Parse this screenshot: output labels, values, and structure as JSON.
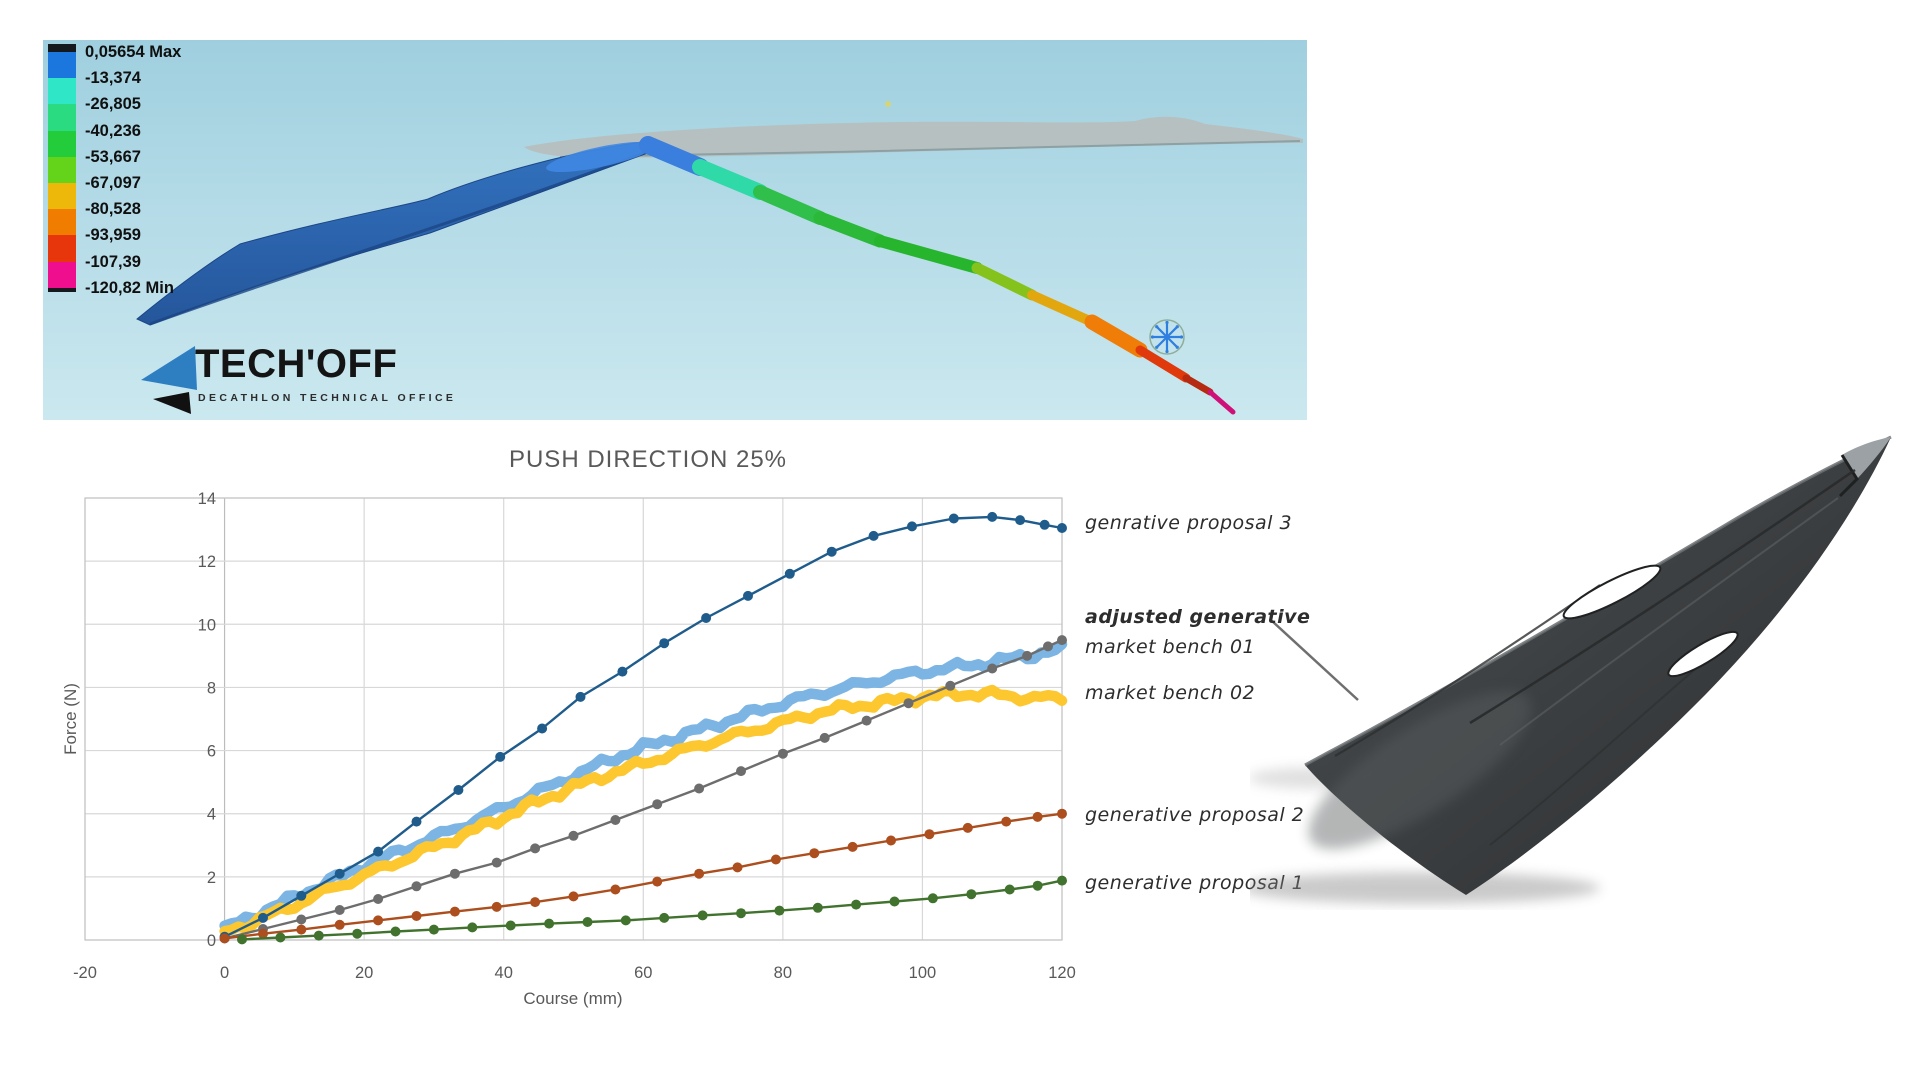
{
  "fea": {
    "legend": {
      "labels": [
        "0,05654 Max",
        "-13,374",
        "-26,805",
        "-40,236",
        "-53,667",
        "-67,097",
        "-80,528",
        "-93,959",
        "-107,39",
        "-120,82 Min"
      ],
      "band_colors": [
        "#1b76dd",
        "#2fe6c6",
        "#2bdb82",
        "#22cc3a",
        "#63d41a",
        "#eeb80a",
        "#f07d00",
        "#e8360c",
        "#ef0e8e"
      ]
    },
    "logo": {
      "title": "TECH'OFF",
      "subtitle": "DECATHLON TECHNICAL OFFICE"
    },
    "colors": {
      "bg_top": "#9fcfdf",
      "bg_bottom": "#cbe8ef",
      "blade_top": "#3272bf",
      "blade_bottom": "#25569b",
      "blade_edge": "#1c4686",
      "blade_highlight": "#3f87e2",
      "silhouette": "#b6c0c1",
      "silhouette_edge": "#8da0a3",
      "tail": [
        "#3a7ede",
        "#2fd9a8",
        "#2fbf4a",
        "#2cb838",
        "#28b52e",
        "#86c21c",
        "#e2a60e",
        "#ef7d08",
        "#e03a0c",
        "#b52a10",
        "#cf1078"
      ],
      "snowflake": "#2f7fe0",
      "snowflake_ring": "#8fae9a"
    }
  },
  "chart_data": {
    "type": "line",
    "title": "PUSH DIRECTION 25%",
    "xlabel": "Course (mm)",
    "ylabel": "Force (N)",
    "xlim": [
      -20,
      120
    ],
    "ylim": [
      0,
      14
    ],
    "xticks": [
      -20,
      0,
      20,
      40,
      60,
      80,
      100,
      120
    ],
    "yticks": [
      0,
      2,
      4,
      6,
      8,
      10,
      12,
      14
    ],
    "grid": true,
    "legend_position": "right-annotations",
    "series": [
      {
        "name": "genrative proposal 3",
        "color": "#1f5c8c",
        "style": "line+markers",
        "points": [
          [
            0,
            0.1
          ],
          [
            5.5,
            0.7
          ],
          [
            11,
            1.4
          ],
          [
            16.5,
            2.1
          ],
          [
            22,
            2.8
          ],
          [
            27.5,
            3.75
          ],
          [
            33.5,
            4.75
          ],
          [
            39.5,
            5.8
          ],
          [
            45.5,
            6.7
          ],
          [
            51,
            7.7
          ],
          [
            57,
            8.5
          ],
          [
            63,
            9.4
          ],
          [
            69,
            10.2
          ],
          [
            75,
            10.9
          ],
          [
            81,
            11.6
          ],
          [
            87,
            12.3
          ],
          [
            93,
            12.8
          ],
          [
            98.5,
            13.1
          ],
          [
            104.5,
            13.35
          ],
          [
            110,
            13.4
          ],
          [
            114,
            13.3
          ],
          [
            117.5,
            13.15
          ],
          [
            120,
            13.05
          ]
        ]
      },
      {
        "name": "adjusted generative",
        "color": "#6d6d6d",
        "style": "line+markers",
        "points": [
          [
            0,
            0.05
          ],
          [
            5.5,
            0.35
          ],
          [
            11,
            0.65
          ],
          [
            16.5,
            0.95
          ],
          [
            22,
            1.3
          ],
          [
            27.5,
            1.7
          ],
          [
            33,
            2.1
          ],
          [
            39,
            2.45
          ],
          [
            44.5,
            2.9
          ],
          [
            50,
            3.3
          ],
          [
            56,
            3.8
          ],
          [
            62,
            4.3
          ],
          [
            68,
            4.8
          ],
          [
            74,
            5.35
          ],
          [
            80,
            5.9
          ],
          [
            86,
            6.4
          ],
          [
            92,
            6.95
          ],
          [
            98,
            7.5
          ],
          [
            104,
            8.05
          ],
          [
            110,
            8.6
          ],
          [
            115,
            9.0
          ],
          [
            118,
            9.3
          ],
          [
            120,
            9.5
          ]
        ]
      },
      {
        "name": "market bench 01",
        "color": "#7cb5e3",
        "style": "thick-noisy",
        "points": [
          [
            0,
            0.35
          ],
          [
            5,
            0.85
          ],
          [
            10,
            1.35
          ],
          [
            15,
            1.85
          ],
          [
            20,
            2.35
          ],
          [
            25,
            2.8
          ],
          [
            30,
            3.25
          ],
          [
            35,
            3.7
          ],
          [
            40,
            4.2
          ],
          [
            45,
            4.7
          ],
          [
            50,
            5.2
          ],
          [
            55,
            5.7
          ],
          [
            60,
            6.1
          ],
          [
            65,
            6.45
          ],
          [
            70,
            6.8
          ],
          [
            75,
            7.15
          ],
          [
            80,
            7.5
          ],
          [
            85,
            7.8
          ],
          [
            90,
            8.05
          ],
          [
            95,
            8.3
          ],
          [
            100,
            8.5
          ],
          [
            105,
            8.65
          ],
          [
            110,
            8.8
          ],
          [
            115,
            9.0
          ],
          [
            120,
            9.2
          ]
        ]
      },
      {
        "name": "market bench 02",
        "color": "#fdc72f",
        "style": "thick-noisy",
        "points": [
          [
            0,
            0.25
          ],
          [
            5,
            0.65
          ],
          [
            10,
            1.1
          ],
          [
            15,
            1.6
          ],
          [
            20,
            2.05
          ],
          [
            25,
            2.5
          ],
          [
            30,
            2.95
          ],
          [
            35,
            3.4
          ],
          [
            40,
            3.9
          ],
          [
            45,
            4.4
          ],
          [
            50,
            4.85
          ],
          [
            55,
            5.25
          ],
          [
            60,
            5.6
          ],
          [
            65,
            5.95
          ],
          [
            70,
            6.3
          ],
          [
            75,
            6.6
          ],
          [
            80,
            6.9
          ],
          [
            85,
            7.2
          ],
          [
            90,
            7.4
          ],
          [
            95,
            7.55
          ],
          [
            100,
            7.7
          ],
          [
            105,
            7.8
          ],
          [
            110,
            7.78
          ],
          [
            115,
            7.68
          ],
          [
            120,
            7.65
          ]
        ]
      },
      {
        "name": "generative proposal 2",
        "color": "#ac4e1d",
        "style": "line+markers",
        "points": [
          [
            0,
            0.05
          ],
          [
            5.5,
            0.2
          ],
          [
            11,
            0.33
          ],
          [
            16.5,
            0.48
          ],
          [
            22,
            0.62
          ],
          [
            27.5,
            0.76
          ],
          [
            33,
            0.9
          ],
          [
            39,
            1.05
          ],
          [
            44.5,
            1.2
          ],
          [
            50,
            1.38
          ],
          [
            56,
            1.6
          ],
          [
            62,
            1.85
          ],
          [
            68,
            2.1
          ],
          [
            73.5,
            2.3
          ],
          [
            79,
            2.55
          ],
          [
            84.5,
            2.75
          ],
          [
            90,
            2.95
          ],
          [
            95.5,
            3.15
          ],
          [
            101,
            3.35
          ],
          [
            106.5,
            3.55
          ],
          [
            112,
            3.75
          ],
          [
            116.5,
            3.9
          ],
          [
            120,
            4.0
          ]
        ]
      },
      {
        "name": "generative proposal 1",
        "color": "#41722e",
        "style": "line+markers",
        "points": [
          [
            2.5,
            0.02
          ],
          [
            8,
            0.08
          ],
          [
            13.5,
            0.14
          ],
          [
            19,
            0.2
          ],
          [
            24.5,
            0.27
          ],
          [
            30,
            0.33
          ],
          [
            35.5,
            0.4
          ],
          [
            41,
            0.46
          ],
          [
            46.5,
            0.52
          ],
          [
            52,
            0.57
          ],
          [
            57.5,
            0.62
          ],
          [
            63,
            0.7
          ],
          [
            68.5,
            0.78
          ],
          [
            74,
            0.85
          ],
          [
            79.5,
            0.93
          ],
          [
            85,
            1.02
          ],
          [
            90.5,
            1.12
          ],
          [
            96,
            1.22
          ],
          [
            101.5,
            1.32
          ],
          [
            107,
            1.45
          ],
          [
            112.5,
            1.6
          ],
          [
            116.5,
            1.72
          ],
          [
            120,
            1.88
          ]
        ]
      }
    ],
    "annotations": [
      {
        "text": "genrative proposal 3",
        "bold": false
      },
      {
        "text": "adjusted generative",
        "bold": true
      },
      {
        "text": "market bench 01",
        "bold": false
      },
      {
        "text": "market bench 02",
        "bold": false
      },
      {
        "text": "generative proposal 2",
        "bold": false
      },
      {
        "text": "generative proposal 1",
        "bold": false
      }
    ]
  }
}
